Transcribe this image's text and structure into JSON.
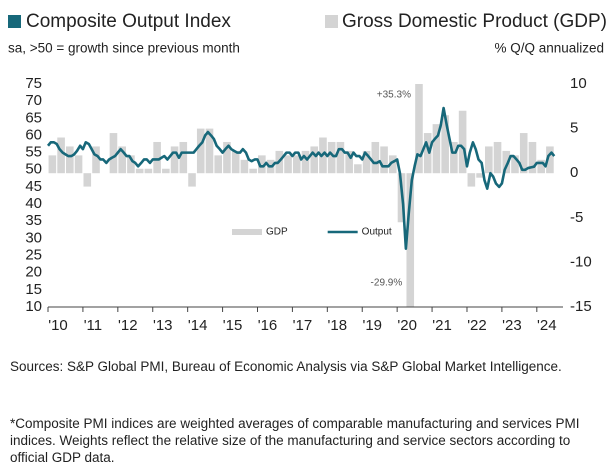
{
  "chart_data": {
    "type": "combo",
    "y_title": "Composite Output Index",
    "y_note": "sa, >50 = growth since previous month",
    "y2_title": "Gross Domestic Product (GDP)",
    "y2_note": "% Q/Q annualized",
    "sources": "Sources: S&P Global PMI, Bureau of Economic Analysis via S&P Global Market Intelligence.",
    "footnote": "*Composite PMI indices are weighted averages of comparable manufacturing and services PMI indices. Weights reflect the relative size of the manufacturing and service sectors according to official GDP data.",
    "xlim": [
      2010,
      2024.75
    ],
    "xticks": [
      {
        "value": 2010,
        "label": "'10"
      },
      {
        "value": 2011,
        "label": "'11"
      },
      {
        "value": 2012,
        "label": "'12"
      },
      {
        "value": 2013,
        "label": "'13"
      },
      {
        "value": 2014,
        "label": "'14"
      },
      {
        "value": 2015,
        "label": "'15"
      },
      {
        "value": 2016,
        "label": "'16"
      },
      {
        "value": 2017,
        "label": "'17"
      },
      {
        "value": 2018,
        "label": "'18"
      },
      {
        "value": 2019,
        "label": "'19"
      },
      {
        "value": 2020,
        "label": "'20"
      },
      {
        "value": 2021,
        "label": "'21"
      },
      {
        "value": 2022,
        "label": "'22"
      },
      {
        "value": 2023,
        "label": "'23"
      },
      {
        "value": 2024,
        "label": "'24"
      }
    ],
    "ylim": [
      10,
      75
    ],
    "yticks": [
      10,
      15,
      20,
      25,
      30,
      35,
      40,
      45,
      50,
      55,
      60,
      65,
      70,
      75
    ],
    "y2lim": [
      -15,
      10
    ],
    "y2ticks": [
      -15,
      -10,
      -5,
      0,
      5,
      10
    ],
    "grid": false,
    "legend": "center",
    "series": [
      {
        "name": "GDP",
        "type": "bar",
        "axis": "y2",
        "color": "#d4d4d4",
        "x": [
          2010.125,
          2010.375,
          2010.625,
          2010.875,
          2011.125,
          2011.375,
          2011.625,
          2011.875,
          2012.125,
          2012.375,
          2012.625,
          2012.875,
          2013.125,
          2013.375,
          2013.625,
          2013.875,
          2014.125,
          2014.375,
          2014.625,
          2014.875,
          2015.125,
          2015.375,
          2015.625,
          2015.875,
          2016.125,
          2016.375,
          2016.625,
          2016.875,
          2017.125,
          2017.375,
          2017.625,
          2017.875,
          2018.125,
          2018.375,
          2018.625,
          2018.875,
          2019.125,
          2019.375,
          2019.625,
          2019.875,
          2020.125,
          2020.375,
          2020.625,
          2020.875,
          2021.125,
          2021.375,
          2021.625,
          2021.875,
          2022.125,
          2022.375,
          2022.625,
          2022.875,
          2023.125,
          2023.375,
          2023.625,
          2023.875,
          2024.125,
          2024.375
        ],
        "values": [
          2,
          4,
          3,
          2,
          -1.5,
          3,
          0,
          4.5,
          3,
          2,
          0.5,
          0.5,
          3.5,
          0.5,
          3,
          3.5,
          -1.5,
          5,
          5,
          2,
          3.5,
          2.5,
          1.5,
          0.5,
          2,
          1.5,
          2.5,
          2,
          2,
          2.5,
          3,
          4,
          3.5,
          3.5,
          2.5,
          1,
          2.5,
          3.5,
          3,
          2,
          -5.5,
          -29.9,
          35.3,
          4.5,
          5.5,
          6.5,
          3.5,
          7,
          -1.5,
          -0.5,
          3,
          3.5,
          2.5,
          2,
          4.5,
          3.5,
          1.5,
          3
        ],
        "value_labels": [
          null,
          null,
          null,
          null,
          null,
          null,
          null,
          null,
          null,
          null,
          null,
          null,
          null,
          null,
          null,
          null,
          null,
          null,
          null,
          null,
          null,
          null,
          null,
          null,
          null,
          null,
          null,
          null,
          null,
          null,
          null,
          null,
          null,
          null,
          null,
          null,
          null,
          null,
          null,
          null,
          null,
          "-29.9%",
          "+35.3%",
          null,
          null,
          null,
          null,
          null,
          null,
          null,
          null,
          null,
          null,
          null,
          null,
          null,
          null,
          null
        ]
      },
      {
        "name": "Output",
        "type": "line",
        "axis": "y",
        "color": "#17687a",
        "x": [
          2010,
          2010.08,
          2010.17,
          2010.25,
          2010.33,
          2010.42,
          2010.5,
          2010.58,
          2010.67,
          2010.75,
          2010.83,
          2010.92,
          2011,
          2011.08,
          2011.17,
          2011.25,
          2011.33,
          2011.42,
          2011.5,
          2011.58,
          2011.67,
          2011.75,
          2011.83,
          2011.92,
          2012,
          2012.08,
          2012.17,
          2012.25,
          2012.33,
          2012.42,
          2012.5,
          2012.58,
          2012.67,
          2012.75,
          2012.83,
          2012.92,
          2013,
          2013.08,
          2013.17,
          2013.25,
          2013.33,
          2013.42,
          2013.5,
          2013.58,
          2013.67,
          2013.75,
          2013.83,
          2013.92,
          2014,
          2014.08,
          2014.17,
          2014.25,
          2014.33,
          2014.42,
          2014.5,
          2014.58,
          2014.67,
          2014.75,
          2014.83,
          2014.92,
          2015,
          2015.08,
          2015.17,
          2015.25,
          2015.33,
          2015.42,
          2015.5,
          2015.58,
          2015.67,
          2015.75,
          2015.83,
          2015.92,
          2016,
          2016.08,
          2016.17,
          2016.25,
          2016.33,
          2016.42,
          2016.5,
          2016.58,
          2016.67,
          2016.75,
          2016.83,
          2016.92,
          2017,
          2017.08,
          2017.17,
          2017.25,
          2017.33,
          2017.42,
          2017.5,
          2017.58,
          2017.67,
          2017.75,
          2017.83,
          2017.92,
          2018,
          2018.08,
          2018.17,
          2018.25,
          2018.33,
          2018.42,
          2018.5,
          2018.58,
          2018.67,
          2018.75,
          2018.83,
          2018.92,
          2019,
          2019.08,
          2019.17,
          2019.25,
          2019.33,
          2019.42,
          2019.5,
          2019.58,
          2019.67,
          2019.75,
          2019.83,
          2019.92,
          2020,
          2020.08,
          2020.17,
          2020.25,
          2020.33,
          2020.42,
          2020.5,
          2020.58,
          2020.67,
          2020.75,
          2020.83,
          2020.92,
          2021,
          2021.08,
          2021.17,
          2021.25,
          2021.33,
          2021.42,
          2021.5,
          2021.58,
          2021.67,
          2021.75,
          2021.83,
          2021.92,
          2022,
          2022.08,
          2022.17,
          2022.25,
          2022.33,
          2022.42,
          2022.5,
          2022.58,
          2022.67,
          2022.75,
          2022.83,
          2022.92,
          2023,
          2023.08,
          2023.17,
          2023.25,
          2023.33,
          2023.42,
          2023.5,
          2023.58,
          2023.67,
          2023.75,
          2023.83,
          2023.92,
          2024,
          2024.08,
          2024.17,
          2024.25,
          2024.33,
          2024.42,
          2024.5
        ],
        "values": [
          57,
          58,
          58,
          57.5,
          56,
          55,
          54.5,
          54,
          54,
          54.5,
          55.5,
          57,
          56,
          58,
          57.5,
          56,
          54.5,
          54,
          53,
          53,
          52,
          53,
          53.5,
          54,
          55,
          56,
          55,
          54,
          54,
          52.5,
          52,
          51,
          52,
          53,
          53,
          52,
          53,
          53,
          53,
          53.5,
          54,
          53,
          54,
          55,
          55,
          53.5,
          55,
          55,
          55,
          55,
          55,
          56,
          57,
          58,
          60,
          61,
          60,
          59,
          57,
          56,
          55,
          56,
          57,
          56,
          55.5,
          55,
          55,
          56,
          55,
          53,
          52.5,
          53,
          53,
          51,
          51,
          52,
          51,
          51,
          52,
          52,
          53,
          54,
          55,
          55,
          54,
          55,
          55,
          53,
          54,
          53,
          54,
          55,
          54,
          55,
          54,
          55,
          54,
          55,
          54,
          54,
          56,
          56,
          55,
          55,
          53.5,
          55,
          54,
          54,
          53,
          55,
          54,
          53,
          52,
          52,
          52.5,
          51,
          51,
          51,
          52,
          52.5,
          53,
          49,
          40,
          27,
          37,
          47,
          51,
          54.5,
          54,
          56,
          58,
          55,
          58,
          59,
          60,
          63,
          68,
          63,
          59,
          55,
          55,
          57,
          57,
          56,
          51,
          55,
          58,
          56,
          53,
          52,
          47,
          44.5,
          49,
          48,
          46,
          45,
          46,
          50,
          52,
          54,
          54,
          53,
          52,
          50,
          50,
          50.5,
          50.7,
          50.9,
          52,
          52,
          52,
          51,
          54,
          55,
          54
        ]
      }
    ]
  }
}
